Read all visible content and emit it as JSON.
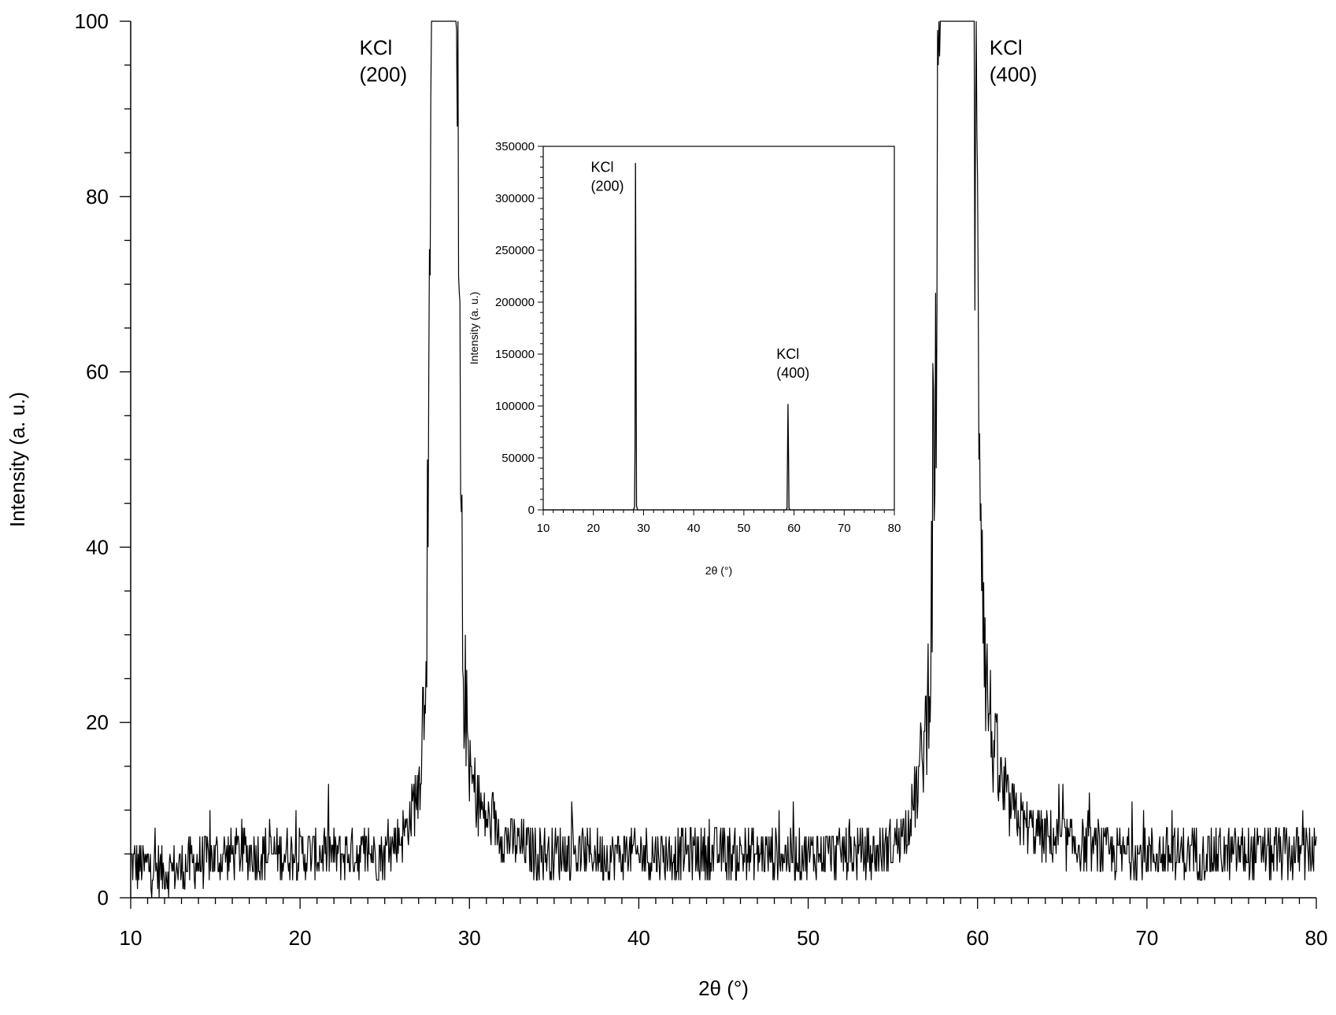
{
  "chart_data": [
    {
      "type": "line",
      "xlabel": "2θ (°)",
      "ylabel": "Intensity (a. u.)",
      "xlim": [
        10,
        80
      ],
      "ylim": [
        0,
        100
      ],
      "x_ticks": [
        "10",
        "20",
        "30",
        "40",
        "50",
        "60",
        "70",
        "80"
      ],
      "y_ticks": [
        "0",
        "20",
        "40",
        "60",
        "80",
        "100"
      ],
      "grid": false,
      "annotations": [
        {
          "line1": "KCl",
          "line2": "(200)",
          "x": 23.5,
          "y": 98
        },
        {
          "line1": "KCl",
          "line2": "(400)",
          "x": 60.7,
          "y": 98
        }
      ],
      "peaks": [
        {
          "center": 28.4,
          "height": 334000,
          "hkl": "(200)"
        },
        {
          "center": 58.8,
          "height": 102000,
          "hkl": "(400)"
        }
      ],
      "series": [
        {
          "x": [
            10,
            12,
            14,
            16,
            18,
            20,
            22,
            24,
            25,
            26,
            26.5,
            27,
            27.3,
            27.6,
            27.8,
            28.0,
            28.4,
            28.9,
            29.2,
            29.4,
            29.6,
            30.0,
            30.5,
            31,
            32,
            34,
            36,
            38,
            40,
            42,
            44,
            46,
            48,
            50,
            52,
            54,
            55,
            56,
            56.5,
            57,
            57.3,
            57.6,
            57.8,
            58.8,
            59.8,
            60.0,
            60.3,
            60.5,
            61,
            61.5,
            62,
            63,
            64,
            66,
            68,
            70,
            72,
            74,
            76,
            78,
            80
          ],
          "y": [
            4,
            3,
            4,
            5,
            5,
            5,
            5,
            5,
            5,
            7,
            9,
            13,
            22,
            45,
            100,
            100,
            100,
            100,
            100,
            60,
            28,
            14,
            11,
            9,
            7,
            5,
            5,
            5,
            5,
            5,
            5,
            5,
            5,
            5,
            5,
            5,
            6,
            9,
            13,
            20,
            35,
            70,
            100,
            100,
            100,
            70,
            40,
            25,
            16,
            12,
            10,
            8,
            7,
            6,
            5,
            5,
            5,
            5,
            5,
            5,
            5
          ]
        }
      ]
    },
    {
      "type": "line",
      "xlabel": "2θ (°)",
      "ylabel": "Intensity (a. u.)",
      "xlim": [
        10,
        80
      ],
      "ylim": [
        0,
        350000
      ],
      "x_ticks": [
        "10",
        "20",
        "30",
        "40",
        "50",
        "60",
        "70",
        "80"
      ],
      "y_ticks": [
        "0",
        "50000",
        "100000",
        "150000",
        "200000",
        "250000",
        "300000",
        "350000"
      ],
      "grid": false,
      "annotations": [
        {
          "line1": "KCl",
          "line2": "(200)",
          "x": 19.5,
          "y": 330000
        },
        {
          "line1": "KCl",
          "line2": "(400)",
          "x": 56.5,
          "y": 150000
        }
      ],
      "series": [
        {
          "x": [
            10,
            28.0,
            28.2,
            28.3,
            28.4,
            28.5,
            28.6,
            28.8,
            58.4,
            58.6,
            58.7,
            58.8,
            58.9,
            59.0,
            59.2,
            75.5
          ],
          "y": [
            0,
            0,
            3000,
            60000,
            334000,
            180000,
            4000,
            0,
            0,
            1500,
            52000,
            102000,
            52000,
            1500,
            0,
            0
          ]
        }
      ]
    }
  ]
}
